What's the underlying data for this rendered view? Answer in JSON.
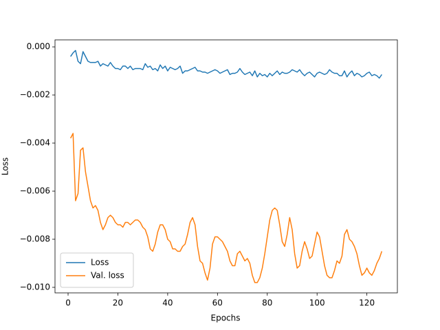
{
  "chart_data": {
    "type": "line",
    "xlabel": "Epochs",
    "ylabel": "Loss",
    "x": [
      1,
      2,
      3,
      4,
      5,
      6,
      7,
      8,
      9,
      10,
      11,
      12,
      13,
      14,
      15,
      16,
      17,
      18,
      19,
      20,
      21,
      22,
      23,
      24,
      25,
      26,
      27,
      28,
      29,
      30,
      31,
      32,
      33,
      34,
      35,
      36,
      37,
      38,
      39,
      40,
      41,
      42,
      43,
      44,
      45,
      46,
      47,
      48,
      49,
      50,
      51,
      52,
      53,
      54,
      55,
      56,
      57,
      58,
      59,
      60,
      61,
      62,
      63,
      64,
      65,
      66,
      67,
      68,
      69,
      70,
      71,
      72,
      73,
      74,
      75,
      76,
      77,
      78,
      79,
      80,
      81,
      82,
      83,
      84,
      85,
      86,
      87,
      88,
      89,
      90,
      91,
      92,
      93,
      94,
      95,
      96,
      97,
      98,
      99,
      100,
      101,
      102,
      103,
      104,
      105,
      106,
      107,
      108,
      109,
      110,
      111,
      112,
      113,
      114,
      115,
      116,
      117,
      118,
      119,
      120,
      121,
      122,
      123,
      124,
      125,
      126
    ],
    "series": [
      {
        "name": "Loss",
        "color": "#1f77b4",
        "values": [
          -0.0004,
          -0.00025,
          -0.00015,
          -0.0006,
          -0.0007,
          -0.0002,
          -0.0004,
          -0.0006,
          -0.00065,
          -0.00065,
          -0.00065,
          -0.0006,
          -0.0008,
          -0.0007,
          -0.00075,
          -0.0008,
          -0.00065,
          -0.0008,
          -0.0009,
          -0.0009,
          -0.00095,
          -0.0008,
          -0.0008,
          -0.0009,
          -0.0008,
          -0.00095,
          -0.0009,
          -0.0009,
          -0.0009,
          -0.00095,
          -0.0007,
          -0.00085,
          -0.0008,
          -0.00095,
          -0.0009,
          -0.001,
          -0.00075,
          -0.0009,
          -0.0008,
          -0.001,
          -0.00085,
          -0.0009,
          -0.00095,
          -0.0009,
          -0.0008,
          -0.0011,
          -0.001,
          -0.001,
          -0.00095,
          -0.0009,
          -0.00085,
          -0.001,
          -0.001,
          -0.00105,
          -0.00105,
          -0.0011,
          -0.00105,
          -0.001,
          -0.00095,
          -0.001,
          -0.0011,
          -0.00105,
          -0.001,
          -0.00095,
          -0.00115,
          -0.0011,
          -0.0011,
          -0.00105,
          -0.0009,
          -0.00105,
          -0.00115,
          -0.0011,
          -0.00105,
          -0.0012,
          -0.001,
          -0.00125,
          -0.0011,
          -0.0012,
          -0.00115,
          -0.00125,
          -0.0011,
          -0.0012,
          -0.0011,
          -0.001,
          -0.00115,
          -0.00105,
          -0.0011,
          -0.0011,
          -0.00105,
          -0.00095,
          -0.001,
          -0.00105,
          -0.00095,
          -0.0011,
          -0.0012,
          -0.0011,
          -0.00105,
          -0.00115,
          -0.00125,
          -0.0011,
          -0.00105,
          -0.0011,
          -0.00115,
          -0.0011,
          -0.00095,
          -0.00105,
          -0.0011,
          -0.0011,
          -0.0012,
          -0.0012,
          -0.001,
          -0.00125,
          -0.0011,
          -0.001,
          -0.0012,
          -0.0011,
          -0.00115,
          -0.00125,
          -0.0012,
          -0.0011,
          -0.00105,
          -0.0012,
          -0.00115,
          -0.0012,
          -0.0013,
          -0.00115
        ]
      },
      {
        "name": "Val. loss",
        "color": "#ff7f0e",
        "values": [
          -0.0038,
          -0.0036,
          -0.0064,
          -0.0061,
          -0.0043,
          -0.0042,
          -0.0052,
          -0.0058,
          -0.0064,
          -0.0067,
          -0.0066,
          -0.0068,
          -0.0073,
          -0.0076,
          -0.0074,
          -0.0071,
          -0.007,
          -0.0071,
          -0.0073,
          -0.0074,
          -0.0074,
          -0.0075,
          -0.0073,
          -0.0073,
          -0.0074,
          -0.0073,
          -0.0072,
          -0.0072,
          -0.0073,
          -0.0075,
          -0.0076,
          -0.0079,
          -0.0084,
          -0.0085,
          -0.0082,
          -0.0077,
          -0.0074,
          -0.0074,
          -0.0076,
          -0.008,
          -0.0081,
          -0.0084,
          -0.0084,
          -0.0085,
          -0.0085,
          -0.0083,
          -0.0082,
          -0.0078,
          -0.0073,
          -0.0071,
          -0.0074,
          -0.0083,
          -0.0089,
          -0.009,
          -0.0094,
          -0.0097,
          -0.0092,
          -0.0082,
          -0.0079,
          -0.0079,
          -0.008,
          -0.0081,
          -0.0083,
          -0.0085,
          -0.0089,
          -0.0091,
          -0.0091,
          -0.0086,
          -0.0085,
          -0.0087,
          -0.0089,
          -0.0088,
          -0.009,
          -0.0095,
          -0.0098,
          -0.0098,
          -0.0096,
          -0.0092,
          -0.0086,
          -0.0079,
          -0.0072,
          -0.0068,
          -0.0067,
          -0.0068,
          -0.0074,
          -0.0081,
          -0.0083,
          -0.0078,
          -0.0071,
          -0.0076,
          -0.0086,
          -0.0092,
          -0.0091,
          -0.0085,
          -0.0081,
          -0.0084,
          -0.0088,
          -0.0087,
          -0.0082,
          -0.0077,
          -0.0079,
          -0.0085,
          -0.0091,
          -0.0095,
          -0.0096,
          -0.0096,
          -0.0093,
          -0.0089,
          -0.009,
          -0.0087,
          -0.0078,
          -0.0076,
          -0.008,
          -0.0081,
          -0.0083,
          -0.0086,
          -0.0091,
          -0.0095,
          -0.0094,
          -0.0092,
          -0.0094,
          -0.0095,
          -0.0093,
          -0.009,
          -0.0088,
          -0.0085
        ]
      }
    ],
    "xlim": [
      -5.25,
      132.25
    ],
    "ylim": [
      -0.01023,
      0.00029
    ],
    "xticks": [
      0,
      20,
      40,
      60,
      80,
      100,
      120
    ],
    "yticks": [
      {
        "value": 0,
        "label": "0.000"
      },
      {
        "value": -0.002,
        "label": "−0.002"
      },
      {
        "value": -0.004,
        "label": "−0.004"
      },
      {
        "value": -0.006,
        "label": "−0.006"
      },
      {
        "value": -0.008,
        "label": "−0.008"
      },
      {
        "value": -0.01,
        "label": "−0.010"
      }
    ],
    "grid": false,
    "legend": "lower left"
  }
}
